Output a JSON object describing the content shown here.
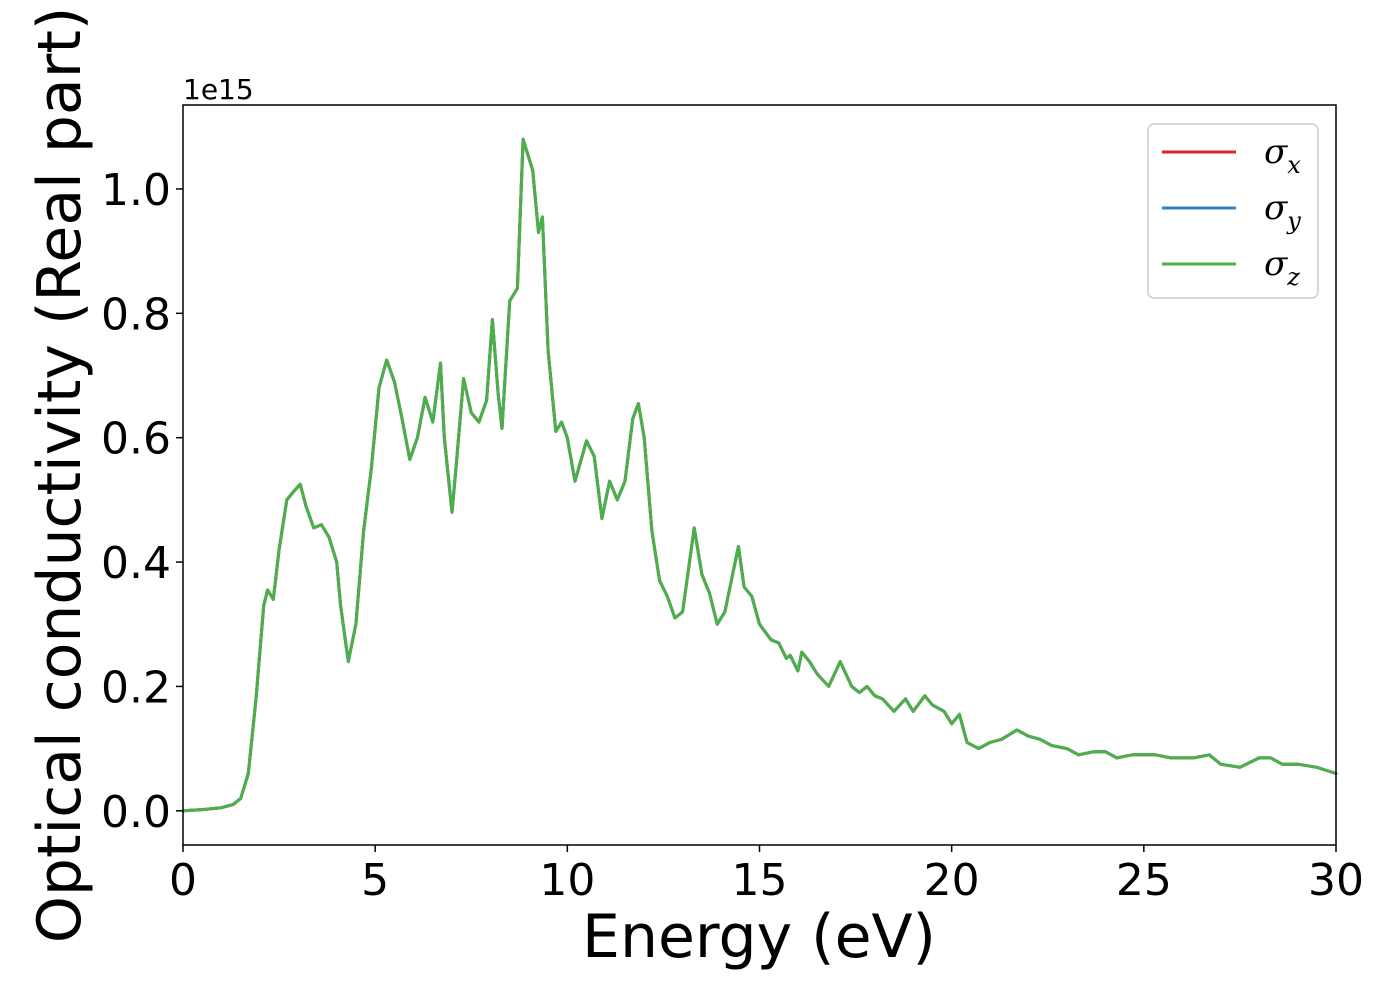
{
  "chart_data": {
    "type": "line",
    "xlabel": "Energy (eV)",
    "ylabel": "Optical conductivity (Real part)",
    "y_offset_label": "1e15",
    "xlim": [
      0,
      30
    ],
    "ylim": [
      -0.055,
      1.135
    ],
    "x_ticks": [
      0,
      5,
      10,
      15,
      20,
      25,
      30
    ],
    "x_tick_labels": [
      "0",
      "5",
      "10",
      "15",
      "20",
      "25",
      "30"
    ],
    "y_ticks": [
      0.0,
      0.2,
      0.4,
      0.6,
      0.8,
      1.0
    ],
    "y_tick_labels": [
      "0.0",
      "0.2",
      "0.4",
      "0.6",
      "0.8",
      "1.0"
    ],
    "grid": false,
    "legend_position": "top-right",
    "series": [
      {
        "name": "σ",
        "sub": "x",
        "color": "#d62728"
      },
      {
        "name": "σ",
        "sub": "y",
        "color": "#3a7fb8"
      },
      {
        "name": "σ",
        "sub": "z",
        "color": "#4daf4a"
      }
    ],
    "x": [
      0,
      0.5,
      1.0,
      1.3,
      1.5,
      1.7,
      1.9,
      2.1,
      2.2,
      2.35,
      2.5,
      2.7,
      2.9,
      3.05,
      3.2,
      3.4,
      3.6,
      3.8,
      4.0,
      4.1,
      4.3,
      4.5,
      4.7,
      4.9,
      5.1,
      5.3,
      5.5,
      5.7,
      5.9,
      6.1,
      6.3,
      6.5,
      6.7,
      6.8,
      7.0,
      7.1,
      7.3,
      7.5,
      7.7,
      7.9,
      8.05,
      8.2,
      8.3,
      8.5,
      8.7,
      8.85,
      9.1,
      9.25,
      9.35,
      9.5,
      9.7,
      9.85,
      10.0,
      10.2,
      10.5,
      10.7,
      10.9,
      11.1,
      11.3,
      11.5,
      11.7,
      11.85,
      12.0,
      12.2,
      12.4,
      12.6,
      12.8,
      13.0,
      13.3,
      13.5,
      13.7,
      13.9,
      14.1,
      14.3,
      14.45,
      14.6,
      14.8,
      15.0,
      15.3,
      15.5,
      15.7,
      15.8,
      16.0,
      16.1,
      16.3,
      16.5,
      16.8,
      17.1,
      17.4,
      17.6,
      17.8,
      18.0,
      18.2,
      18.5,
      18.8,
      19.0,
      19.3,
      19.5,
      19.8,
      20.0,
      20.2,
      20.4,
      20.7,
      21.0,
      21.3,
      21.7,
      22.0,
      22.3,
      22.6,
      23.0,
      23.3,
      23.7,
      24.0,
      24.3,
      24.7,
      25.0,
      25.3,
      25.7,
      26.0,
      26.3,
      26.7,
      27.0,
      27.5,
      28.0,
      28.3,
      28.6,
      29.0,
      29.5,
      30.0
    ],
    "values": [
      0.0,
      0.002,
      0.005,
      0.01,
      0.02,
      0.06,
      0.18,
      0.33,
      0.355,
      0.34,
      0.42,
      0.5,
      0.515,
      0.525,
      0.49,
      0.455,
      0.46,
      0.44,
      0.4,
      0.33,
      0.24,
      0.3,
      0.45,
      0.55,
      0.68,
      0.725,
      0.69,
      0.63,
      0.565,
      0.6,
      0.665,
      0.625,
      0.72,
      0.6,
      0.48,
      0.55,
      0.695,
      0.64,
      0.625,
      0.66,
      0.79,
      0.67,
      0.615,
      0.82,
      0.84,
      1.08,
      1.03,
      0.93,
      0.955,
      0.74,
      0.61,
      0.625,
      0.6,
      0.53,
      0.595,
      0.57,
      0.47,
      0.53,
      0.5,
      0.53,
      0.63,
      0.655,
      0.6,
      0.45,
      0.37,
      0.345,
      0.31,
      0.32,
      0.455,
      0.38,
      0.35,
      0.3,
      0.32,
      0.38,
      0.425,
      0.36,
      0.345,
      0.3,
      0.275,
      0.27,
      0.245,
      0.25,
      0.225,
      0.255,
      0.24,
      0.22,
      0.2,
      0.24,
      0.2,
      0.19,
      0.2,
      0.185,
      0.18,
      0.16,
      0.18,
      0.16,
      0.185,
      0.17,
      0.16,
      0.14,
      0.155,
      0.11,
      0.1,
      0.11,
      0.115,
      0.13,
      0.12,
      0.115,
      0.105,
      0.1,
      0.09,
      0.095,
      0.095,
      0.085,
      0.09,
      0.09,
      0.09,
      0.085,
      0.085,
      0.085,
      0.09,
      0.075,
      0.07,
      0.085,
      0.085,
      0.075,
      0.075,
      0.07,
      0.06
    ]
  }
}
